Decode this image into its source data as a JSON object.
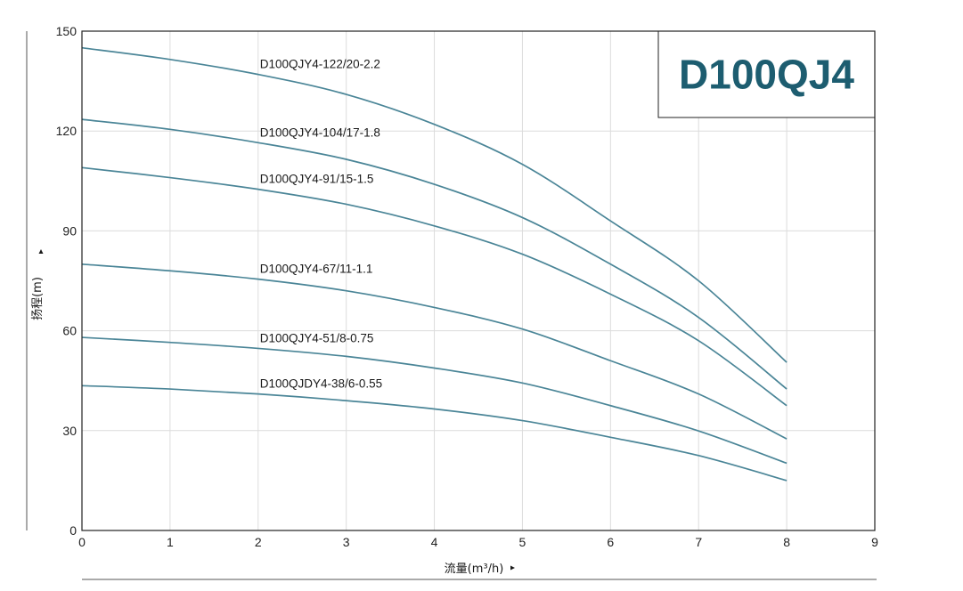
{
  "chart_data": {
    "type": "line",
    "title": "D100QJ4",
    "xlabel": "流量(m³/h)",
    "ylabel": "扬程(m)",
    "xlim": [
      0,
      9
    ],
    "ylim": [
      0,
      150
    ],
    "x_ticks": [
      0,
      1,
      2,
      3,
      4,
      5,
      6,
      7,
      8,
      9
    ],
    "y_ticks": [
      0,
      30,
      60,
      90,
      120,
      150
    ],
    "grid": true,
    "colors": {
      "line": "#4a8597",
      "grid": "#dcdcdc",
      "frame": "#222222",
      "title": "#1d5d70"
    },
    "series": [
      {
        "name": "D100QJY4-122/20-2.2",
        "x": [
          0,
          1,
          2,
          3,
          4,
          5,
          6,
          7,
          8
        ],
        "y": [
          145,
          141.5,
          137,
          131,
          122,
          110,
          93,
          75,
          50.5
        ]
      },
      {
        "name": "D100QJY4-104/17-1.8",
        "x": [
          0,
          1,
          2,
          3,
          4,
          5,
          6,
          7,
          8
        ],
        "y": [
          123.5,
          120.5,
          116.5,
          111.5,
          104,
          94,
          80,
          64,
          42.5
        ]
      },
      {
        "name": "D100QJY4-91/15-1.5",
        "x": [
          0,
          1,
          2,
          3,
          4,
          5,
          6,
          7,
          8
        ],
        "y": [
          109,
          106,
          102.5,
          98,
          91.5,
          83,
          71,
          57,
          37.5
        ]
      },
      {
        "name": "D100QJY4-67/11-1.1",
        "x": [
          0,
          1,
          2,
          3,
          4,
          5,
          6,
          7,
          8
        ],
        "y": [
          80,
          78,
          75.5,
          72,
          67,
          60.5,
          51,
          41,
          27.5
        ]
      },
      {
        "name": "D100QJY4-51/8-0.75",
        "x": [
          0,
          1,
          2,
          3,
          4,
          5,
          6,
          7,
          8
        ],
        "y": [
          58,
          56.5,
          54.7,
          52.3,
          48.8,
          44.3,
          37.5,
          29.9,
          20.2
        ]
      },
      {
        "name": "D100QJDY4-38/6-0.55",
        "x": [
          0,
          1,
          2,
          3,
          4,
          5,
          6,
          7,
          8
        ],
        "y": [
          43.5,
          42.5,
          41,
          39,
          36.5,
          33,
          28,
          22.5,
          15
        ]
      }
    ]
  }
}
